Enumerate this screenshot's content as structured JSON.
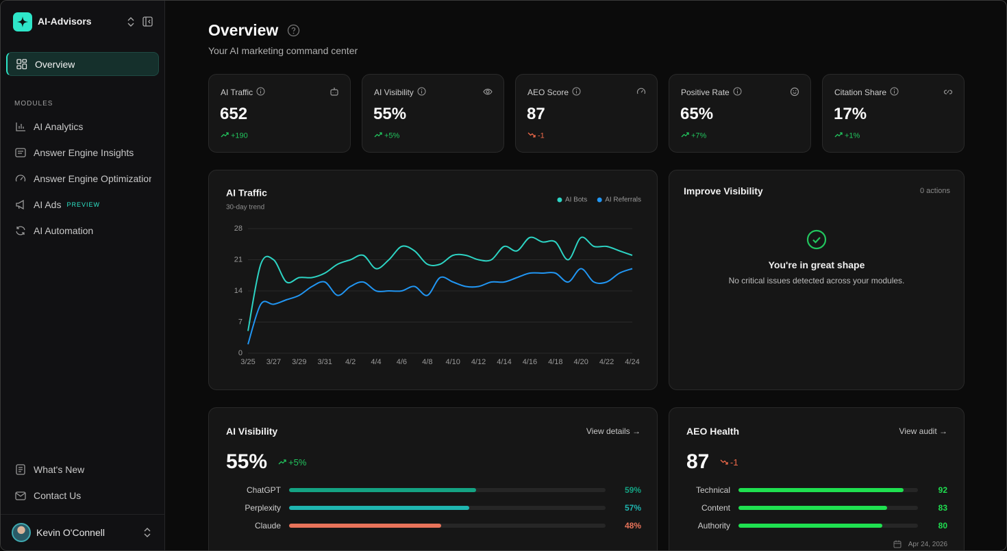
{
  "sidebar": {
    "brand": "AI-Advisors",
    "nav": [
      "Overview"
    ],
    "modules_heading": "MODULES",
    "modules": [
      {
        "label": "AI Analytics"
      },
      {
        "label": "Answer Engine Insights"
      },
      {
        "label": "Answer Engine Optimization"
      },
      {
        "label": "AI Ads",
        "badge": "PREVIEW"
      },
      {
        "label": "AI Automation"
      }
    ],
    "footer_links": [
      "What's New",
      "Contact Us"
    ],
    "user": "Kevin O'Connell"
  },
  "header": {
    "title": "Overview",
    "subtitle": "Your AI marketing command center"
  },
  "kpis": [
    {
      "label": "AI Traffic",
      "value": 652,
      "change": "+190"
    },
    {
      "label": "AI Visibility",
      "value": "55%",
      "change": "+5%"
    },
    {
      "label": "AEO Score",
      "value": 87,
      "change": "-1"
    },
    {
      "label": "Positive Rate",
      "value": "65%",
      "change": "+7%"
    },
    {
      "label": "Citation Share",
      "value": "17%",
      "change": "+1%"
    }
  ],
  "chart_data": {
    "type": "line",
    "title": "AI Traffic",
    "subtitle": "30-day trend",
    "categories": [
      "3/25",
      null,
      "3/27",
      null,
      "3/29",
      null,
      "3/31",
      null,
      "4/2",
      null,
      "4/4",
      null,
      "4/6",
      null,
      "4/8",
      null,
      "4/10",
      null,
      "4/12",
      null,
      "4/14",
      null,
      "4/16",
      null,
      "4/18",
      null,
      "4/20",
      null,
      "4/22",
      null,
      "4/24"
    ],
    "series": [
      {
        "name": "AI Bots",
        "color": "#2dd4c4",
        "values": [
          5,
          20,
          21,
          16,
          17,
          17,
          18,
          20,
          21,
          22,
          19,
          21,
          24,
          23,
          20,
          20,
          22,
          22,
          21,
          21,
          24,
          23,
          26,
          25,
          25,
          21,
          26,
          24,
          24,
          23,
          22
        ]
      },
      {
        "name": "AI Referrals",
        "color": "#2196f3",
        "values": [
          2,
          11,
          11,
          12,
          13,
          15,
          16,
          13,
          15,
          16,
          14,
          14,
          14,
          15,
          13,
          17,
          16,
          15,
          15,
          16,
          16,
          17,
          18,
          18,
          18,
          16,
          19,
          16,
          16,
          18,
          19
        ]
      }
    ],
    "ylim": [
      0,
      28
    ],
    "yticks": [
      0,
      7,
      14,
      21,
      28
    ],
    "grid": true,
    "legend": "top-right"
  },
  "improve": {
    "title": "Improve Visibility",
    "actions": "0 actions",
    "headline": "You're in great shape",
    "message": "No critical issues detected across your modules."
  },
  "visibility": {
    "title": "AI Visibility",
    "link": "View details →",
    "value": "55%",
    "change": "+5%",
    "rows": [
      {
        "name": "ChatGPT",
        "value": 59,
        "label": "59%",
        "color": "#14a383"
      },
      {
        "name": "Perplexity",
        "value": 57,
        "label": "57%",
        "color": "#1fb5b0"
      },
      {
        "name": "Claude",
        "value": 48,
        "label": "48%",
        "color": "#e8735a"
      }
    ]
  },
  "health": {
    "title": "AEO Health",
    "link": "View audit →",
    "value": 87,
    "change": "-1",
    "color": "#1fe050",
    "rows": [
      {
        "name": "Technical",
        "value": 92
      },
      {
        "name": "Content",
        "value": 83
      },
      {
        "name": "Authority",
        "value": 80
      }
    ],
    "date": "Apr 24, 2026"
  }
}
